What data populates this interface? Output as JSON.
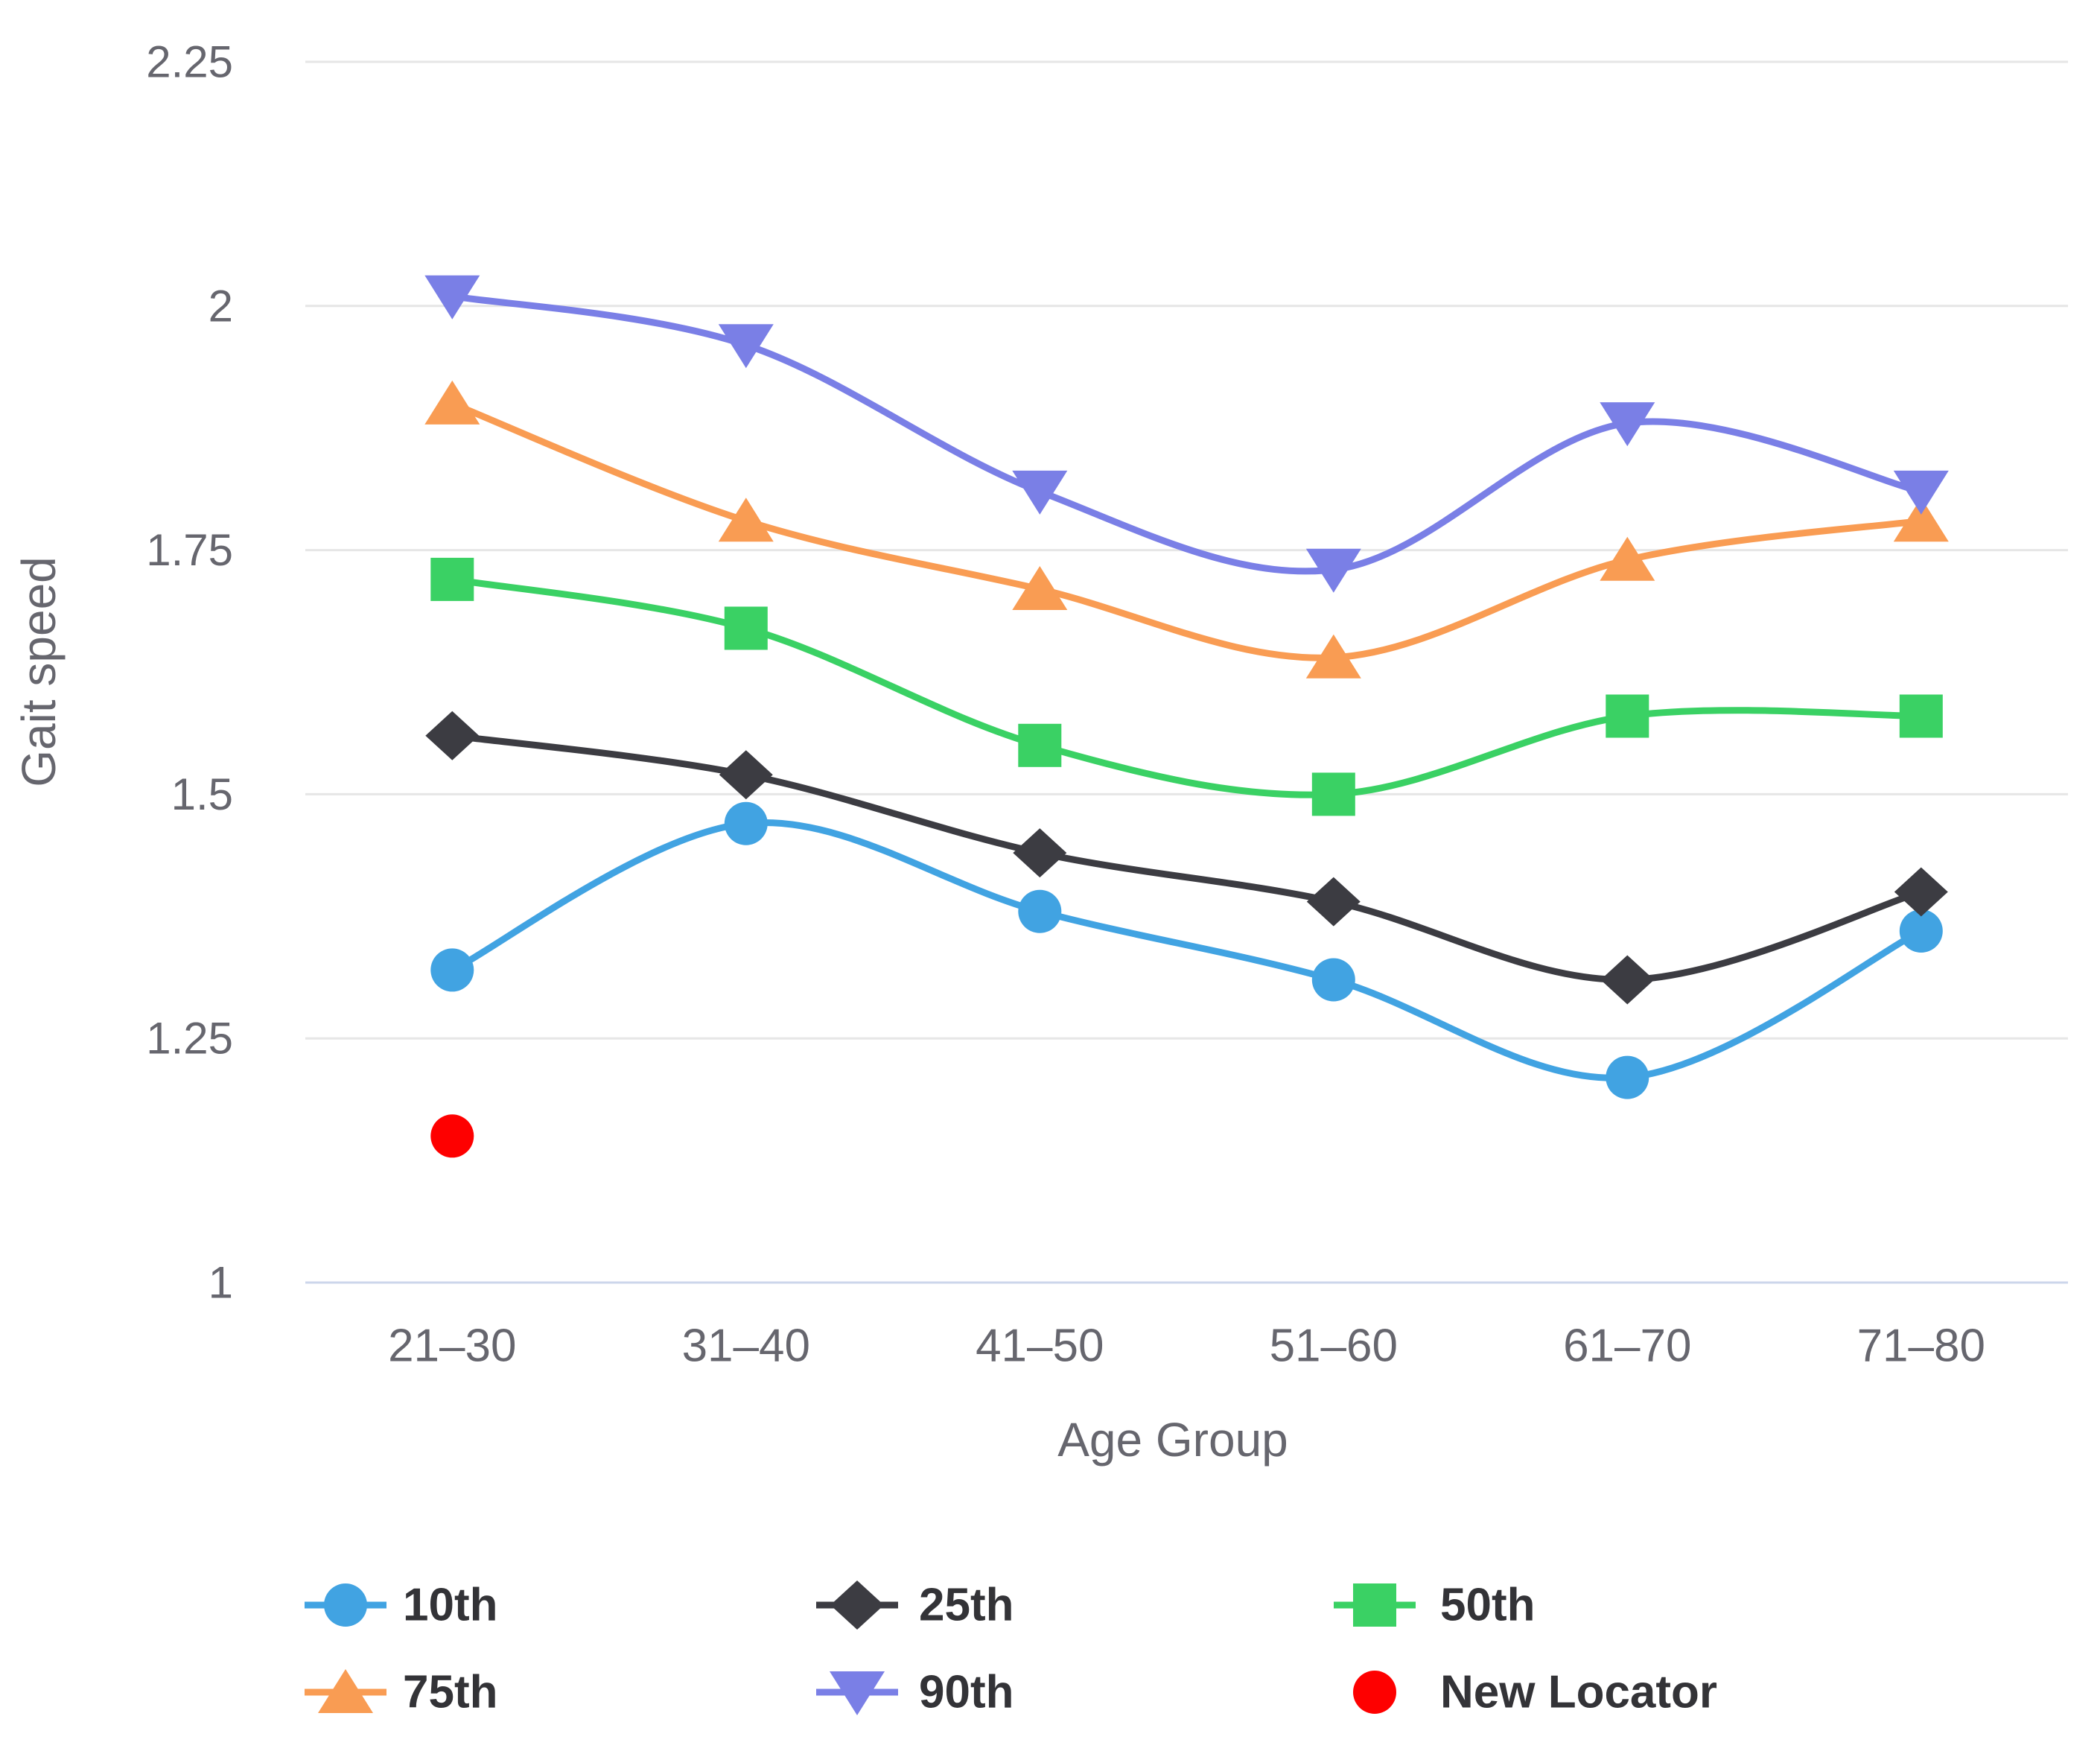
{
  "chart_data": {
    "type": "line",
    "title": "",
    "xlabel": "Age Group",
    "ylabel": "Gait speed",
    "categories": [
      "21–30",
      "31–40",
      "41–50",
      "51–60",
      "61–70",
      "71–80"
    ],
    "yticks": [
      2.25,
      2,
      1.75,
      1.5,
      1.25,
      1
    ],
    "ylim": [
      1,
      2.25
    ],
    "grid": true,
    "legend_position": "bottom",
    "curve": "spline",
    "series": [
      {
        "name": "10th",
        "color": "#41a3e2",
        "marker": "circle",
        "line": true,
        "values": [
          1.32,
          1.47,
          1.38,
          1.31,
          1.21,
          1.36
        ]
      },
      {
        "name": "25th",
        "color": "#3c3c42",
        "marker": "diamond",
        "line": true,
        "values": [
          1.56,
          1.52,
          1.44,
          1.39,
          1.31,
          1.4
        ]
      },
      {
        "name": "50th",
        "color": "#3ad164",
        "marker": "square",
        "line": true,
        "values": [
          1.72,
          1.67,
          1.55,
          1.5,
          1.58,
          1.58
        ]
      },
      {
        "name": "75th",
        "color": "#f99c53",
        "marker": "triangle-up",
        "line": true,
        "values": [
          1.9,
          1.78,
          1.71,
          1.64,
          1.74,
          1.78
        ]
      },
      {
        "name": "90th",
        "color": "#7a7fe6",
        "marker": "triangle-down",
        "line": true,
        "values": [
          2.01,
          1.96,
          1.81,
          1.73,
          1.88,
          1.81
        ]
      },
      {
        "name": "New Locator",
        "color": "#fe0000",
        "marker": "circle",
        "line": false,
        "values": [
          1.15,
          null,
          null,
          null,
          null,
          null
        ]
      }
    ],
    "colors": {
      "grid": "#e6e6e6",
      "axis_line": "#ccd6eb",
      "tick_text": "#66666e",
      "title_text": "#66666e",
      "legend_text": "#333337"
    }
  }
}
